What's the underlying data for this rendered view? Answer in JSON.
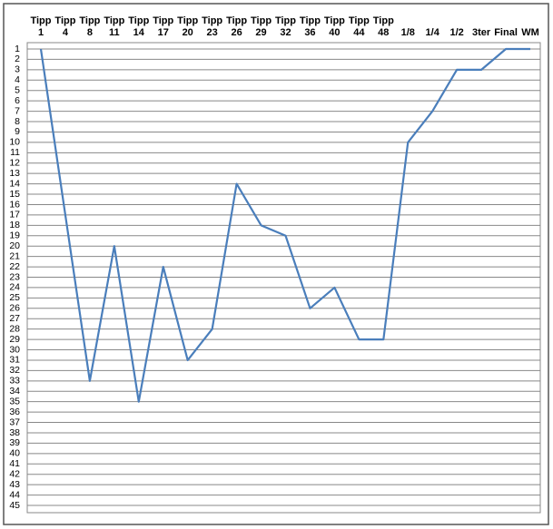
{
  "chart_data": {
    "type": "line",
    "categories": [
      "Tipp 1",
      "Tipp 4",
      "Tipp 8",
      "Tipp 11",
      "Tipp 14",
      "Tipp 17",
      "Tipp 20",
      "Tipp 23",
      "Tipp 26",
      "Tipp 29",
      "Tipp 32",
      "Tipp 36",
      "Tipp 40",
      "Tipp 44",
      "Tipp 48",
      "1/8",
      "1/4",
      "1/2",
      "3ter",
      "Final",
      "WM"
    ],
    "series": [
      {
        "color": "#4a7ebb",
        "values": [
          1,
          17,
          33,
          20,
          35,
          22,
          31,
          28,
          14,
          18,
          19,
          26,
          24,
          29,
          29,
          10,
          7,
          3,
          3,
          1,
          1
        ]
      }
    ],
    "ylim": [
      1,
      45
    ],
    "y_reversed": true,
    "yticks": [
      1,
      2,
      3,
      4,
      5,
      6,
      7,
      8,
      9,
      10,
      11,
      12,
      13,
      14,
      15,
      16,
      17,
      18,
      19,
      20,
      21,
      22,
      23,
      24,
      25,
      26,
      27,
      28,
      29,
      30,
      31,
      32,
      33,
      34,
      35,
      36,
      37,
      38,
      39,
      40,
      41,
      42,
      43,
      44,
      45
    ],
    "grid": true
  }
}
